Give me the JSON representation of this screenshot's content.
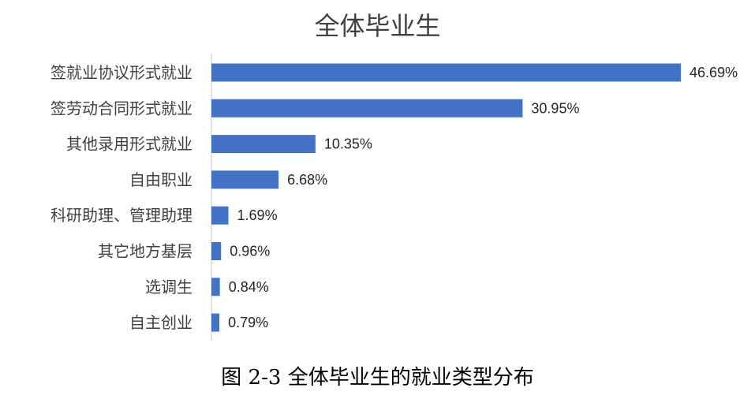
{
  "chart_data": {
    "type": "bar",
    "orientation": "horizontal",
    "title": "全体毕业生",
    "categories": [
      "签就业协议形式就业",
      "签劳动合同形式就业",
      "其他录用形式就业",
      "自由职业",
      "科研助理、管理助理",
      "其它地方基层",
      "选调生",
      "自主创业"
    ],
    "values": [
      46.69,
      30.95,
      10.35,
      6.68,
      1.69,
      0.96,
      0.84,
      0.79
    ],
    "data_labels": [
      "46.69%",
      "30.95%",
      "10.35%",
      "6.68%",
      "1.69%",
      "0.96%",
      "0.84%",
      "0.79%"
    ],
    "xlim": [
      0,
      46.69
    ],
    "grid": false,
    "legend": "none",
    "bar_color": "#4472C4"
  },
  "caption": "图 2-3 全体毕业生的就业类型分布"
}
